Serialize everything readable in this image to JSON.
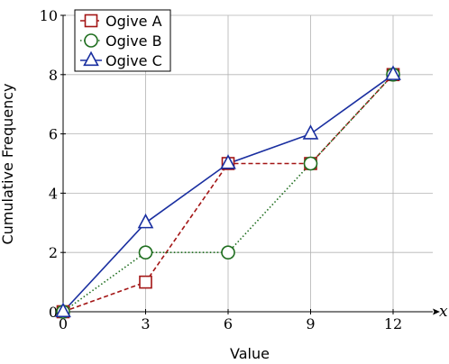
{
  "chart_data": {
    "type": "line",
    "title": "",
    "xlabel": "Value",
    "ylabel": "Cumulative Frequency",
    "x_axis_var": "x",
    "xlim": [
      0,
      13.5
    ],
    "ylim": [
      0,
      10
    ],
    "xticks": [
      0,
      3,
      6,
      9,
      12
    ],
    "yticks": [
      0,
      2,
      4,
      6,
      8,
      10
    ],
    "grid": true,
    "legend_position": "top-left",
    "series": [
      {
        "name": "Ogive A",
        "x": [
          0,
          3,
          6,
          9,
          12
        ],
        "y": [
          0,
          1,
          5,
          5,
          8
        ],
        "color": "#a31515",
        "line_style": "dashed",
        "marker": "square"
      },
      {
        "name": "Ogive B",
        "x": [
          0,
          3,
          6,
          9,
          12
        ],
        "y": [
          0,
          2,
          2,
          5,
          8
        ],
        "color": "#1f6e1f",
        "line_style": "dotted",
        "marker": "circle"
      },
      {
        "name": "Ogive C",
        "x": [
          0,
          3,
          6,
          9,
          12
        ],
        "y": [
          0,
          3,
          5,
          6,
          8
        ],
        "color": "#1a2fa0",
        "line_style": "solid",
        "marker": "triangle"
      }
    ]
  }
}
